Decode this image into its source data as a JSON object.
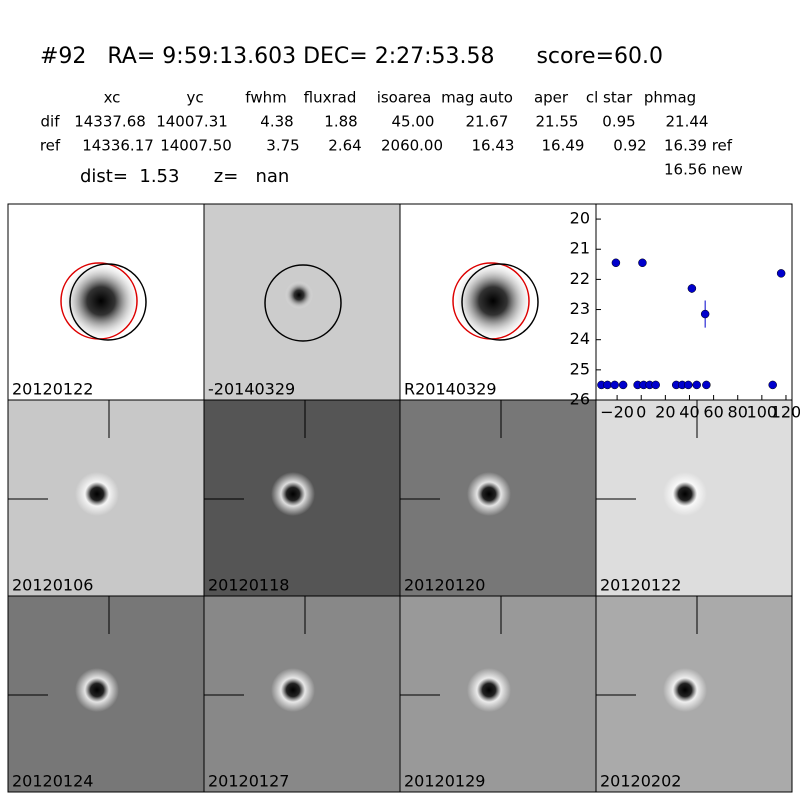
{
  "header": {
    "title": "#92   RA= 9:59:13.603 DEC= 2:27:53.58      score=60.0",
    "dist": "dist=  1.53      z=   nan"
  },
  "table": {
    "columns": [
      "xc",
      "yc",
      "fwhm",
      "fluxrad",
      "isoarea",
      "mag auto",
      "aper",
      "cl star",
      "phmag"
    ],
    "rows": [
      [
        "dif",
        "14337.68",
        "14007.31",
        "4.38",
        "1.88",
        "45.00",
        "21.67",
        "21.55",
        "0.95",
        "21.44"
      ],
      [
        "ref",
        "14336.17",
        "14007.50",
        "3.75",
        "2.64",
        "2060.00",
        "16.43",
        "16.49",
        "0.92",
        "16.39 ref"
      ]
    ],
    "extra": "16.56 new"
  },
  "stamps": [
    {
      "label": "20120122"
    },
    {
      "label": "-20140329"
    },
    {
      "label": "R20140329"
    },
    {
      "label": "20120106"
    },
    {
      "label": "20120118"
    },
    {
      "label": "20120120"
    },
    {
      "label": "20120122",
      "color": "#ff0000"
    },
    {
      "label": "20120124"
    },
    {
      "label": "20120127"
    },
    {
      "label": "20120129"
    },
    {
      "label": "20120202"
    }
  ],
  "chart_data": {
    "type": "scatter",
    "color": "#0000cc",
    "x": [
      -33,
      -28,
      -22,
      -21,
      -15,
      -3,
      1,
      2,
      7,
      12,
      29,
      34,
      39,
      42,
      46,
      53,
      54,
      109,
      116
    ],
    "values": [
      25.5,
      25.5,
      25.5,
      21.45,
      25.5,
      25.5,
      21.45,
      25.5,
      25.5,
      25.5,
      25.5,
      25.5,
      25.5,
      22.3,
      25.5,
      23.15,
      25.5,
      25.5,
      21.8
    ],
    "errors": [
      null,
      null,
      null,
      null,
      null,
      null,
      null,
      null,
      null,
      null,
      null,
      null,
      null,
      0.15,
      null,
      0.45,
      null,
      null,
      null
    ],
    "xlim": [
      -37.5,
      125
    ],
    "ylim": [
      26,
      19.5
    ],
    "xticks": [
      {
        "value": -20,
        "label": "−20"
      },
      0,
      20,
      40,
      60,
      80,
      100,
      120
    ],
    "yticks": [
      20,
      21,
      22,
      23,
      24,
      25,
      26
    ]
  }
}
